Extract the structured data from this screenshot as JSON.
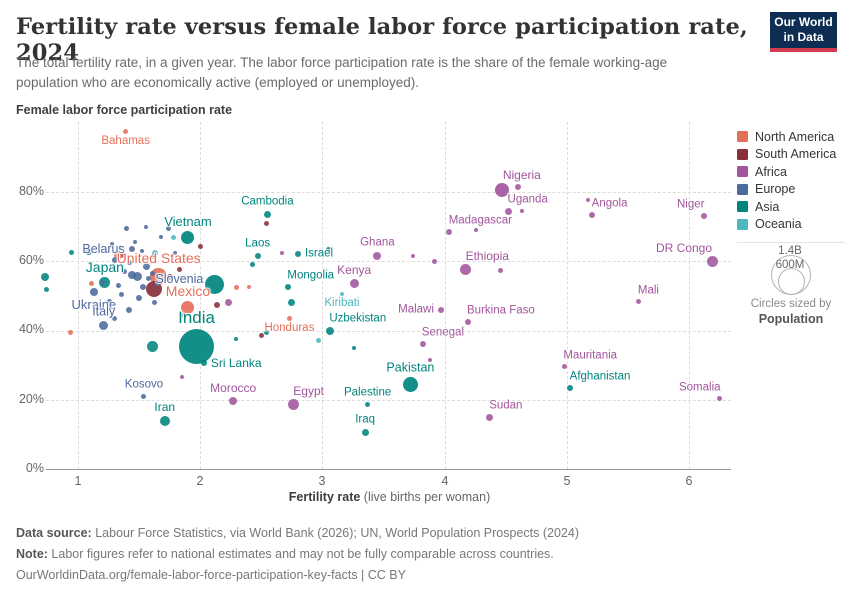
{
  "header": {
    "title": "Fertility rate versus female labor force participation rate, 2024",
    "subtitle": "The total fertility rate, in a given year. The labor force participation rate is the share of the female working-age population who are economically active (employed or unemployed).",
    "logo": {
      "line1": "Our World",
      "line2": "in Data",
      "bg_color": "#0d2d52",
      "bar_color": "#d13d4e"
    }
  },
  "axes": {
    "y_label": "Female labor force participation rate",
    "y_ticks": [
      {
        "value": 0,
        "label": "0%"
      },
      {
        "value": 20,
        "label": "20%"
      },
      {
        "value": 40,
        "label": "40%"
      },
      {
        "value": 60,
        "label": "60%"
      },
      {
        "value": 80,
        "label": "80%"
      }
    ],
    "x_ticks": [
      "1",
      "2",
      "3",
      "4",
      "5",
      "6"
    ],
    "x_label_bold": "Fertility rate",
    "x_label_rest": " (live births per woman)"
  },
  "legend": {
    "continents": [
      {
        "code": "NA",
        "name": "North America",
        "color": "#E56E5A"
      },
      {
        "code": "SA",
        "name": "South America",
        "color": "#883039"
      },
      {
        "code": "AF",
        "name": "Africa",
        "color": "#A2559C"
      },
      {
        "code": "EU",
        "name": "Europe",
        "color": "#4C6A9C"
      },
      {
        "code": "AS",
        "name": "Asia",
        "color": "#00847E"
      },
      {
        "code": "OC",
        "name": "Oceania",
        "color": "#4EB7BE"
      }
    ],
    "size_legend": {
      "big_label": "1.4B",
      "small_label": "600M",
      "caption1": "Circles sized by",
      "caption2": "Population"
    }
  },
  "footer": {
    "source_bold": "Data source:",
    "source_text": " Labour Force Statistics, via World Bank (2026); UN, World Population Prospects (2024)",
    "note_bold": "Note:",
    "note_text": " Labor figures refer to national estimates and may not be fully comparable across countries.",
    "link": "OurWorldinData.org/female-labor-force-participation-key-facts | CC BY"
  },
  "chart_data": {
    "type": "scatter",
    "title": "Fertility rate versus female labor force participation rate, 2024",
    "xlabel": "Fertility rate (live births per woman)",
    "ylabel": "Female labor force participation rate",
    "xlim": [
      0.65,
      6.35
    ],
    "ylim": [
      0,
      100
    ],
    "grid": true,
    "legend_position": "right",
    "size_by": "Population",
    "points": [
      {
        "n": "Bahamas",
        "c": "NA",
        "f": 1.39,
        "p": 97.5,
        "r": 2.5,
        "lp": "below",
        "ls": 11.5
      },
      {
        "n": "Vietnam",
        "c": "AS",
        "f": 1.9,
        "p": 67,
        "r": 6.5,
        "lp": "above",
        "ls": 13
      },
      {
        "n": "Belarus",
        "c": "EU",
        "f": 1.44,
        "p": 63.5,
        "r": 3,
        "lp": "left",
        "ls": 12.5
      },
      {
        "n": "United States",
        "c": "NA",
        "f": 1.66,
        "p": 55.5,
        "r": 8.5,
        "lp": "above",
        "ls": 14
      },
      {
        "n": "Japan",
        "c": "AS",
        "f": 1.22,
        "p": 54,
        "r": 5.5,
        "lp": "above",
        "ls": 14
      },
      {
        "n": "Slovenia",
        "c": "EU",
        "f": 1.58,
        "p": 55,
        "r": 2.5,
        "lp": "right",
        "ls": 12.5
      },
      {
        "n": "Ukraine",
        "c": "EU",
        "f": 1.13,
        "p": 51,
        "r": 4,
        "lp": "below",
        "ls": 13
      },
      {
        "n": "Italy",
        "c": "EU",
        "f": 1.21,
        "p": 41.5,
        "r": 4.5,
        "lp": "above",
        "ls": 12.5
      },
      {
        "n": "Mexico",
        "c": "NA",
        "f": 1.9,
        "p": 46.5,
        "r": 6.5,
        "lp": "above",
        "ls": 14
      },
      {
        "n": "India",
        "c": "AS",
        "f": 1.97,
        "p": 35.5,
        "r": 17.5,
        "lp": "above",
        "ls": 17
      },
      {
        "n": "Sri Lanka",
        "c": "AS",
        "f": 2.03,
        "p": 30.5,
        "r": 3,
        "lp": "right",
        "ls": 12
      },
      {
        "n": "Kosovo",
        "c": "EU",
        "f": 1.54,
        "p": 21,
        "r": 2.5,
        "lp": "above",
        "ls": 11.5
      },
      {
        "n": "Iran",
        "c": "AS",
        "f": 1.71,
        "p": 14,
        "r": 5,
        "lp": "above",
        "ls": 12
      },
      {
        "n": "Morocco",
        "c": "AF",
        "f": 2.27,
        "p": 19.5,
        "r": 4,
        "lp": "above",
        "ls": 12
      },
      {
        "n": "Honduras",
        "c": "NA",
        "f": 2.73,
        "p": 43.5,
        "r": 2.5,
        "lp": "below",
        "ls": 11.5
      },
      {
        "n": "Cambodia",
        "c": "AS",
        "f": 2.55,
        "p": 73.5,
        "r": 3.5,
        "lp": "above",
        "ls": 11.5
      },
      {
        "n": "Laos",
        "c": "AS",
        "f": 2.47,
        "p": 61.5,
        "r": 3,
        "lp": "above",
        "ls": 11.5
      },
      {
        "n": "Israel",
        "c": "AS",
        "f": 2.8,
        "p": 62,
        "r": 3,
        "lp": "right",
        "ls": 11.5
      },
      {
        "n": "Mongolia",
        "c": "AS",
        "f": 2.72,
        "p": 52.5,
        "r": 3,
        "lp": "above-right",
        "ls": 11.5
      },
      {
        "n": "Ghana",
        "c": "AF",
        "f": 3.45,
        "p": 61.5,
        "r": 4,
        "lp": "above",
        "ls": 11.5
      },
      {
        "n": "Kenya",
        "c": "AF",
        "f": 3.26,
        "p": 53.5,
        "r": 4.5,
        "lp": "above",
        "ls": 12
      },
      {
        "n": "Kiribati",
        "c": "OC",
        "f": 3.16,
        "p": 50.5,
        "r": 2,
        "lp": "below",
        "ls": 11.5
      },
      {
        "n": "Malawi",
        "c": "AF",
        "f": 3.97,
        "p": 46,
        "r": 3,
        "lp": "left",
        "ls": 11.5
      },
      {
        "n": "Uzbekistan",
        "c": "AS",
        "f": 3.06,
        "p": 40,
        "r": 4,
        "lp": "above-right",
        "ls": 11.5
      },
      {
        "n": "Burkina Faso",
        "c": "AF",
        "f": 4.19,
        "p": 42.5,
        "r": 3,
        "lp": "above-right",
        "ls": 11.5
      },
      {
        "n": "Senegal",
        "c": "AF",
        "f": 3.82,
        "p": 36,
        "r": 3,
        "lp": "above-right",
        "ls": 11.5
      },
      {
        "n": "Pakistan",
        "c": "AS",
        "f": 3.72,
        "p": 24.5,
        "r": 7.5,
        "lp": "above",
        "ls": 12.5
      },
      {
        "n": "Palestine",
        "c": "AS",
        "f": 3.37,
        "p": 18.5,
        "r": 2.5,
        "lp": "above",
        "ls": 11.5
      },
      {
        "n": "Egypt",
        "c": "AF",
        "f": 2.76,
        "p": 18.5,
        "r": 5.5,
        "lp": "above-right",
        "ls": 12
      },
      {
        "n": "Iraq",
        "c": "AS",
        "f": 3.35,
        "p": 10.5,
        "r": 3.5,
        "lp": "above",
        "ls": 11.5
      },
      {
        "n": "Sudan",
        "c": "AF",
        "f": 4.37,
        "p": 15,
        "r": 3.5,
        "lp": "above-right",
        "ls": 11.5
      },
      {
        "n": "Madagascar",
        "c": "AF",
        "f": 4.04,
        "p": 68.5,
        "r": 3,
        "lp": "above-right",
        "ls": 11.5
      },
      {
        "n": "Ethiopia",
        "c": "AF",
        "f": 4.17,
        "p": 57.5,
        "r": 5.5,
        "lp": "above-right",
        "ls": 12
      },
      {
        "n": "Nigeria",
        "c": "AF",
        "f": 4.47,
        "p": 80.5,
        "r": 7,
        "lp": "above-right",
        "ls": 12
      },
      {
        "n": "Uganda",
        "c": "AF",
        "f": 4.52,
        "p": 74.5,
        "r": 3.5,
        "lp": "above-right",
        "ls": 11.5
      },
      {
        "n": "Angola",
        "c": "AF",
        "f": 5.21,
        "p": 73.5,
        "r": 3,
        "lp": "above-right",
        "ls": 11.5
      },
      {
        "n": "Niger",
        "c": "AF",
        "f": 6.12,
        "p": 73,
        "r": 3,
        "lp": "above-left",
        "ls": 11.5
      },
      {
        "n": "DR Congo",
        "c": "AF",
        "f": 6.19,
        "p": 60,
        "r": 5.5,
        "lp": "above-left",
        "ls": 12
      },
      {
        "n": "Mali",
        "c": "AF",
        "f": 5.59,
        "p": 48.5,
        "r": 2.5,
        "lp": "above-right",
        "ls": 11.5
      },
      {
        "n": "Mauritania",
        "c": "AF",
        "f": 4.98,
        "p": 29.5,
        "r": 2.5,
        "lp": "above-right",
        "ls": 11.5
      },
      {
        "n": "Afghanistan",
        "c": "AS",
        "f": 5.03,
        "p": 23.5,
        "r": 3,
        "lp": "above-right",
        "ls": 11.5
      },
      {
        "n": "Somalia",
        "c": "AF",
        "f": 6.25,
        "p": 20.5,
        "r": 2.5,
        "lp": "above-left",
        "ls": 11.5
      },
      {
        "c": "EU",
        "f": 1.4,
        "p": 69.5,
        "r": 2.5
      },
      {
        "c": "EU",
        "f": 1.56,
        "p": 70,
        "r": 2
      },
      {
        "c": "EU",
        "f": 1.74,
        "p": 69.5,
        "r": 2.5
      },
      {
        "c": "EU",
        "f": 1.68,
        "p": 67,
        "r": 2
      },
      {
        "c": "EU",
        "f": 1.1,
        "p": 63,
        "r": 2.5
      },
      {
        "c": "EU",
        "f": 1.28,
        "p": 65,
        "r": 2
      },
      {
        "c": "EU",
        "f": 1.47,
        "p": 65.5,
        "r": 2
      },
      {
        "c": "EU",
        "f": 1.35,
        "p": 64,
        "r": 2.5
      },
      {
        "c": "EU",
        "f": 1.52,
        "p": 63,
        "r": 2
      },
      {
        "c": "EU",
        "f": 1.62,
        "p": 61.5,
        "r": 2.5
      },
      {
        "c": "EU",
        "f": 1.79,
        "p": 62.5,
        "r": 2
      },
      {
        "c": "EU",
        "f": 1.3,
        "p": 60.5,
        "r": 3
      },
      {
        "c": "EU",
        "f": 1.42,
        "p": 59.5,
        "r": 2.5
      },
      {
        "c": "EU",
        "f": 1.56,
        "p": 58.5,
        "r": 3.5
      },
      {
        "c": "EU",
        "f": 1.49,
        "p": 55.5,
        "r": 4.5
      },
      {
        "c": "EU",
        "f": 1.38,
        "p": 57,
        "r": 2.5
      },
      {
        "c": "EU",
        "f": 1.44,
        "p": 56,
        "r": 4
      },
      {
        "c": "EU",
        "f": 1.61,
        "p": 56.5,
        "r": 2.5
      },
      {
        "c": "EU",
        "f": 1.2,
        "p": 54,
        "r": 2.5
      },
      {
        "c": "EU",
        "f": 1.33,
        "p": 53,
        "r": 2.5
      },
      {
        "c": "EU",
        "f": 1.53,
        "p": 52.5,
        "r": 3
      },
      {
        "c": "EU",
        "f": 1.65,
        "p": 53.5,
        "r": 2.5
      },
      {
        "c": "EU",
        "f": 1.36,
        "p": 50.5,
        "r": 2.5
      },
      {
        "c": "EU",
        "f": 1.5,
        "p": 49.5,
        "r": 3
      },
      {
        "c": "EU",
        "f": 1.26,
        "p": 48.5,
        "r": 2.5
      },
      {
        "c": "EU",
        "f": 1.63,
        "p": 48,
        "r": 2.5
      },
      {
        "c": "EU",
        "f": 1.42,
        "p": 46,
        "r": 3
      },
      {
        "c": "EU",
        "f": 1.3,
        "p": 43.5,
        "r": 2.5
      },
      {
        "c": "EU",
        "f": 1.85,
        "p": 44.5,
        "r": 2
      },
      {
        "c": "AS",
        "f": 0.73,
        "p": 55.5,
        "r": 4
      },
      {
        "c": "AS",
        "f": 0.74,
        "p": 51.8,
        "r": 2.5
      },
      {
        "c": "AS",
        "f": 0.95,
        "p": 62.5,
        "r": 2.5
      },
      {
        "c": "AS",
        "f": 1.09,
        "p": 62.7,
        "r": 3.5
      },
      {
        "c": "AS",
        "f": 2.12,
        "p": 53.2,
        "r": 9.5
      },
      {
        "c": "AS",
        "f": 1.61,
        "p": 35.3,
        "r": 5.5
      },
      {
        "c": "AS",
        "f": 2.43,
        "p": 59,
        "r": 2.5
      },
      {
        "c": "AS",
        "f": 2.54,
        "p": 39.5,
        "r": 2.5
      },
      {
        "c": "AS",
        "f": 2.75,
        "p": 48,
        "r": 3.5
      },
      {
        "c": "AS",
        "f": 3.05,
        "p": 63.5,
        "r": 2.5
      },
      {
        "c": "AS",
        "f": 2.29,
        "p": 37.5,
        "r": 2
      },
      {
        "c": "AS",
        "f": 3.26,
        "p": 35,
        "r": 2
      },
      {
        "c": "SA",
        "f": 1.37,
        "p": 61.8,
        "r": 2.5
      },
      {
        "c": "SA",
        "f": 2.0,
        "p": 64.4,
        "r": 2.5
      },
      {
        "c": "SA",
        "f": 1.62,
        "p": 52,
        "r": 8
      },
      {
        "c": "SA",
        "f": 1.75,
        "p": 55.5,
        "r": 3
      },
      {
        "c": "SA",
        "f": 1.83,
        "p": 57.5,
        "r": 2.5
      },
      {
        "c": "SA",
        "f": 2.14,
        "p": 47.4,
        "r": 3
      },
      {
        "c": "SA",
        "f": 2.5,
        "p": 38.7,
        "r": 2.5
      },
      {
        "c": "SA",
        "f": 2.54,
        "p": 71,
        "r": 2.5
      },
      {
        "c": "NA",
        "f": 1.33,
        "p": 61.5,
        "r": 4
      },
      {
        "c": "NA",
        "f": 1.11,
        "p": 53.7,
        "r": 2.5
      },
      {
        "c": "NA",
        "f": 2.3,
        "p": 52.5,
        "r": 2.5
      },
      {
        "c": "NA",
        "f": 2.4,
        "p": 52.5,
        "r": 2
      },
      {
        "c": "NA",
        "f": 0.94,
        "p": 39.3,
        "r": 2.5
      },
      {
        "c": "AF",
        "f": 2.23,
        "p": 48,
        "r": 3.5
      },
      {
        "c": "AF",
        "f": 2.67,
        "p": 62.4,
        "r": 2
      },
      {
        "c": "AF",
        "f": 3.74,
        "p": 61.6,
        "r": 2
      },
      {
        "c": "AF",
        "f": 3.92,
        "p": 59.9,
        "r": 2.5
      },
      {
        "c": "AF",
        "f": 4.26,
        "p": 69.1,
        "r": 2
      },
      {
        "c": "AF",
        "f": 4.46,
        "p": 57.2,
        "r": 2.5
      },
      {
        "c": "AF",
        "f": 4.6,
        "p": 81.3,
        "r": 3
      },
      {
        "c": "AF",
        "f": 4.63,
        "p": 74.5,
        "r": 2
      },
      {
        "c": "AF",
        "f": 5.17,
        "p": 77.7,
        "r": 2
      },
      {
        "c": "AF",
        "f": 3.88,
        "p": 31.5,
        "r": 2
      },
      {
        "c": "AF",
        "f": 1.85,
        "p": 26.5,
        "r": 2
      },
      {
        "c": "OC",
        "f": 1.63,
        "p": 62.5,
        "r": 3
      },
      {
        "c": "OC",
        "f": 1.78,
        "p": 67,
        "r": 2.5
      },
      {
        "c": "OC",
        "f": 2.97,
        "p": 37,
        "r": 2.5
      }
    ]
  }
}
